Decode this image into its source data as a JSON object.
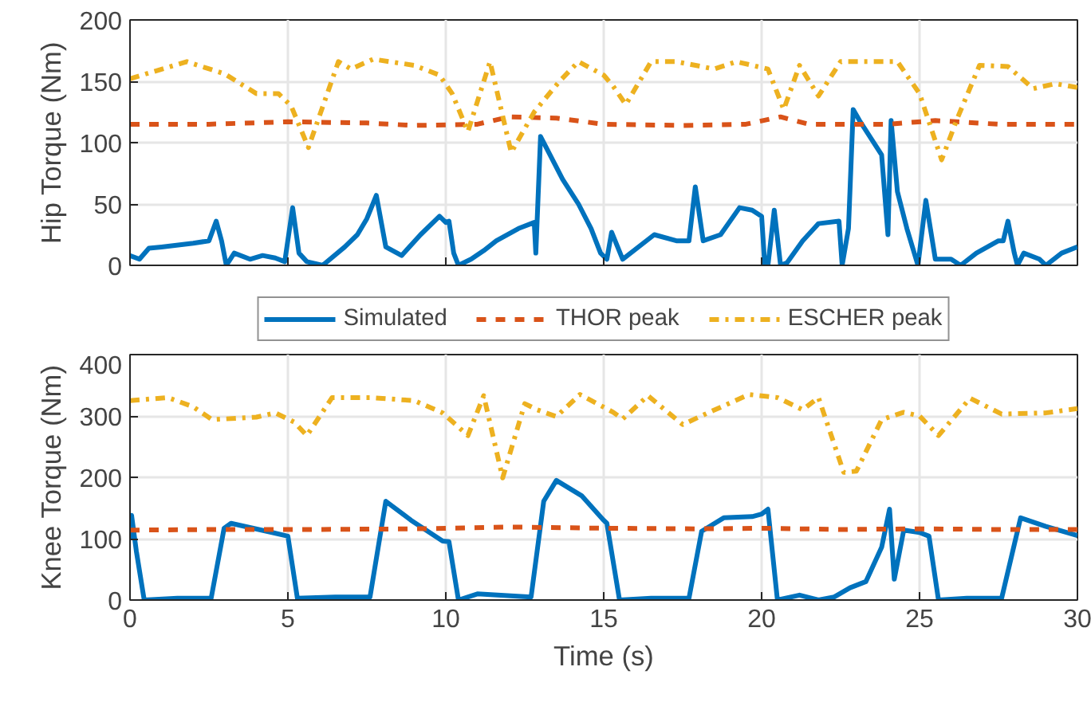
{
  "chart_data": [
    {
      "type": "line",
      "ylabel": "Hip Torque (Nm)",
      "xlim": [
        0,
        30
      ],
      "xticks": [
        0,
        5,
        10,
        15,
        20,
        25,
        30
      ],
      "ylim": [
        0,
        200
      ],
      "yticks": [
        0,
        50,
        100,
        150,
        200
      ],
      "grid": true,
      "legend": "bottom",
      "tick_labels": "y",
      "series": [
        {
          "name": "Simulated",
          "color": "#0072bd",
          "line_style": "solid",
          "x": [
            0,
            0.3,
            0.6,
            1,
            2,
            2.5,
            2.73,
            2.9,
            3.05,
            3.3,
            3.8,
            4.2,
            4.6,
            4.9,
            5.15,
            5.35,
            5.6,
            6.1,
            6.8,
            7.2,
            7.5,
            7.8,
            8.1,
            8.6,
            9.2,
            9.8,
            10.0,
            10.1,
            10.25,
            10.4,
            10.8,
            11.2,
            11.6,
            12.3,
            12.8,
            12.85,
            13.0,
            13.3,
            13.7,
            14.2,
            14.6,
            14.9,
            15.1,
            15.25,
            15.6,
            16.6,
            17.3,
            17.7,
            17.9,
            18.15,
            18.7,
            19.3,
            19.7,
            20.0,
            20.1,
            20.2,
            20.4,
            20.6,
            20.8,
            21.3,
            21.8,
            22.45,
            22.55,
            22.75,
            22.9,
            23.1,
            23.3,
            23.8,
            24.0,
            24.1,
            24.3,
            24.6,
            24.95,
            25.2,
            25.5,
            26.0,
            26.3,
            26.8,
            27.5,
            27.65,
            27.8,
            28.0,
            28.1,
            28.3,
            28.8,
            29.0,
            29.5,
            30
          ],
          "values": [
            8,
            5,
            14,
            15,
            18,
            20,
            36,
            20,
            0,
            10,
            5,
            8,
            6,
            3,
            47,
            10,
            3,
            0,
            15,
            25,
            38,
            57,
            15,
            8,
            25,
            40,
            35,
            36,
            10,
            0,
            5,
            12,
            20,
            30,
            35,
            10,
            105,
            90,
            70,
            50,
            30,
            10,
            5,
            27,
            5,
            25,
            20,
            20,
            64,
            20,
            25,
            47,
            45,
            40,
            0,
            0,
            45,
            0,
            2,
            20,
            34,
            36,
            0,
            30,
            127,
            118,
            110,
            90,
            25,
            118,
            60,
            30,
            0,
            53,
            5,
            5,
            0,
            10,
            20,
            20,
            36,
            10,
            0,
            10,
            5,
            0,
            10,
            15
          ]
        },
        {
          "name": "THOR peak",
          "color": "#d95319",
          "line_style": "dashed",
          "x": [
            0,
            2.5,
            5,
            7.5,
            9,
            11,
            12,
            13.5,
            15,
            17.5,
            19.5,
            20.6,
            21.5,
            24,
            25.5,
            27.5,
            30
          ],
          "values": [
            115,
            115,
            117,
            116,
            114,
            115,
            121,
            120,
            115,
            114,
            115,
            121,
            115,
            115,
            118,
            115,
            115
          ]
        },
        {
          "name": "ESCHER peak",
          "color": "#edb120",
          "line_style": "dashdot",
          "x": [
            0,
            0.5,
            1.8,
            3,
            4,
            4.7,
            5.1,
            5.65,
            6.6,
            7,
            7.7,
            9,
            9.8,
            10.2,
            10.7,
            11.4,
            12.07,
            12.8,
            13.6,
            14.2,
            15,
            15.3,
            15.7,
            16.5,
            17.3,
            18.5,
            19.2,
            20.2,
            20.7,
            21.2,
            21.8,
            22.5,
            24.3,
            25.0,
            25.7,
            26.2,
            26.9,
            27.8,
            28.6,
            29.3,
            30
          ],
          "values": [
            152,
            156,
            166,
            156,
            140,
            140,
            130,
            96,
            166,
            160,
            168,
            163,
            155,
            140,
            109,
            166,
            92,
            125,
            150,
            166,
            155,
            146,
            131,
            166,
            166,
            160,
            166,
            160,
            127,
            163,
            138,
            166,
            166,
            140,
            86,
            120,
            163,
            162,
            144,
            148,
            145
          ]
        }
      ]
    },
    {
      "type": "line",
      "xlabel": "Time (s)",
      "ylabel": "Knee Torque (Nm)",
      "xlim": [
        0,
        30
      ],
      "xticks": [
        0,
        5,
        10,
        15,
        20,
        25,
        30
      ],
      "ylim": [
        0,
        400
      ],
      "yticks": [
        0,
        100,
        200,
        300,
        400
      ],
      "grid": true,
      "series": [
        {
          "color": "#0072bd",
          "line_style": "solid",
          "x": [
            0,
            0.05,
            0.2,
            0.45,
            1.5,
            2.57,
            2.98,
            3.2,
            4.5,
            5.0,
            5.3,
            6.5,
            7.6,
            8.1,
            8.9,
            9.9,
            10.1,
            10.4,
            11,
            12.7,
            13.1,
            13.5,
            14.3,
            15.0,
            15.1,
            15.5,
            16.5,
            17.7,
            18.1,
            18.8,
            19.7,
            20.0,
            20.2,
            20.5,
            21.2,
            21.8,
            22.3,
            22.8,
            23.3,
            23.8,
            24.05,
            24.2,
            24.5,
            25.0,
            25.3,
            25.6,
            26.5,
            27.6,
            28.2,
            29.0,
            30
          ],
          "values": [
            100,
            138,
            80,
            0,
            3,
            3,
            117,
            125,
            110,
            104,
            3,
            5,
            5,
            161,
            130,
            96,
            95,
            0,
            10,
            5,
            161,
            195,
            170,
            130,
            125,
            0,
            3,
            3,
            112,
            134,
            136,
            140,
            148,
            0,
            8,
            0,
            5,
            20,
            30,
            86,
            148,
            34,
            114,
            110,
            104,
            0,
            3,
            3,
            134,
            120,
            105
          ]
        },
        {
          "color": "#d95319",
          "line_style": "dashed",
          "x": [
            0,
            3,
            6,
            9,
            12,
            15,
            18,
            20,
            22.5,
            25,
            27.5,
            30
          ],
          "values": [
            114,
            115,
            115,
            116,
            119,
            117,
            116,
            117,
            115,
            116,
            115,
            115
          ]
        },
        {
          "color": "#edb120",
          "line_style": "dashdot",
          "x": [
            0,
            1.2,
            2,
            2.6,
            4,
            4.6,
            5.2,
            5.6,
            6.4,
            7.6,
            9,
            9.9,
            10.7,
            11.2,
            11.8,
            12.5,
            12.9,
            13.5,
            14.25,
            15.3,
            15.6,
            16.4,
            17.5,
            18.3,
            19.6,
            20.5,
            21.3,
            21.8,
            22.6,
            23.0,
            23.8,
            24.5,
            25.0,
            25.6,
            26.6,
            27.6,
            29.0,
            30
          ],
          "values": [
            325,
            330,
            315,
            294,
            298,
            305,
            290,
            268,
            330,
            330,
            325,
            305,
            268,
            333,
            199,
            320,
            310,
            299,
            335,
            306,
            295,
            333,
            286,
            305,
            335,
            330,
            310,
            330,
            208,
            210,
            294,
            306,
            300,
            268,
            329,
            303,
            305,
            312
          ]
        }
      ]
    }
  ]
}
